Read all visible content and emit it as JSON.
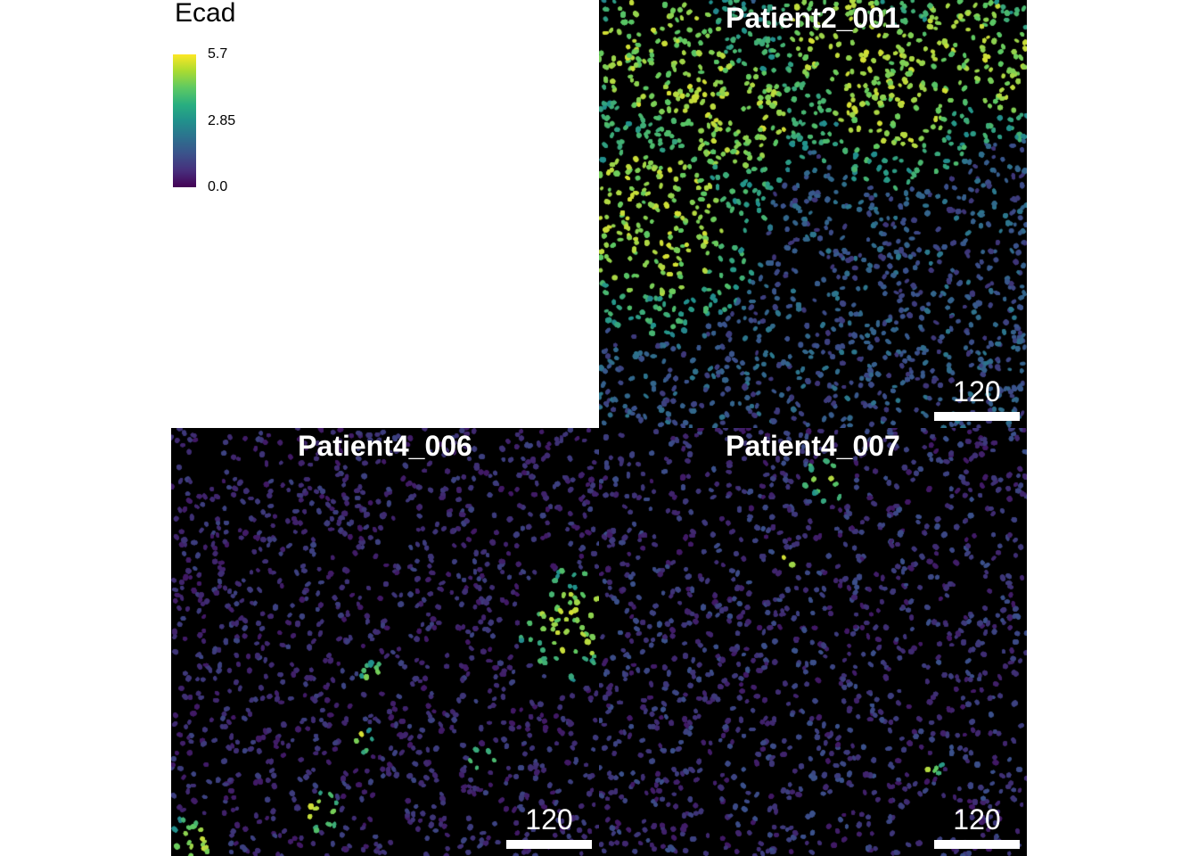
{
  "legend": {
    "title": "Ecad",
    "max_label": "5.7",
    "mid_label": "2.85",
    "min_label": "0.0",
    "colormap": [
      "#440154",
      "#3b528b",
      "#21918c",
      "#5ec962",
      "#fde725"
    ]
  },
  "panels": [
    {
      "title": "Patient2_001",
      "scale_label": "120",
      "expression": "high"
    },
    {
      "title": "Patient4_006",
      "scale_label": "120",
      "expression": "low"
    },
    {
      "title": "Patient4_007",
      "scale_label": "120",
      "expression": "low"
    }
  ]
}
